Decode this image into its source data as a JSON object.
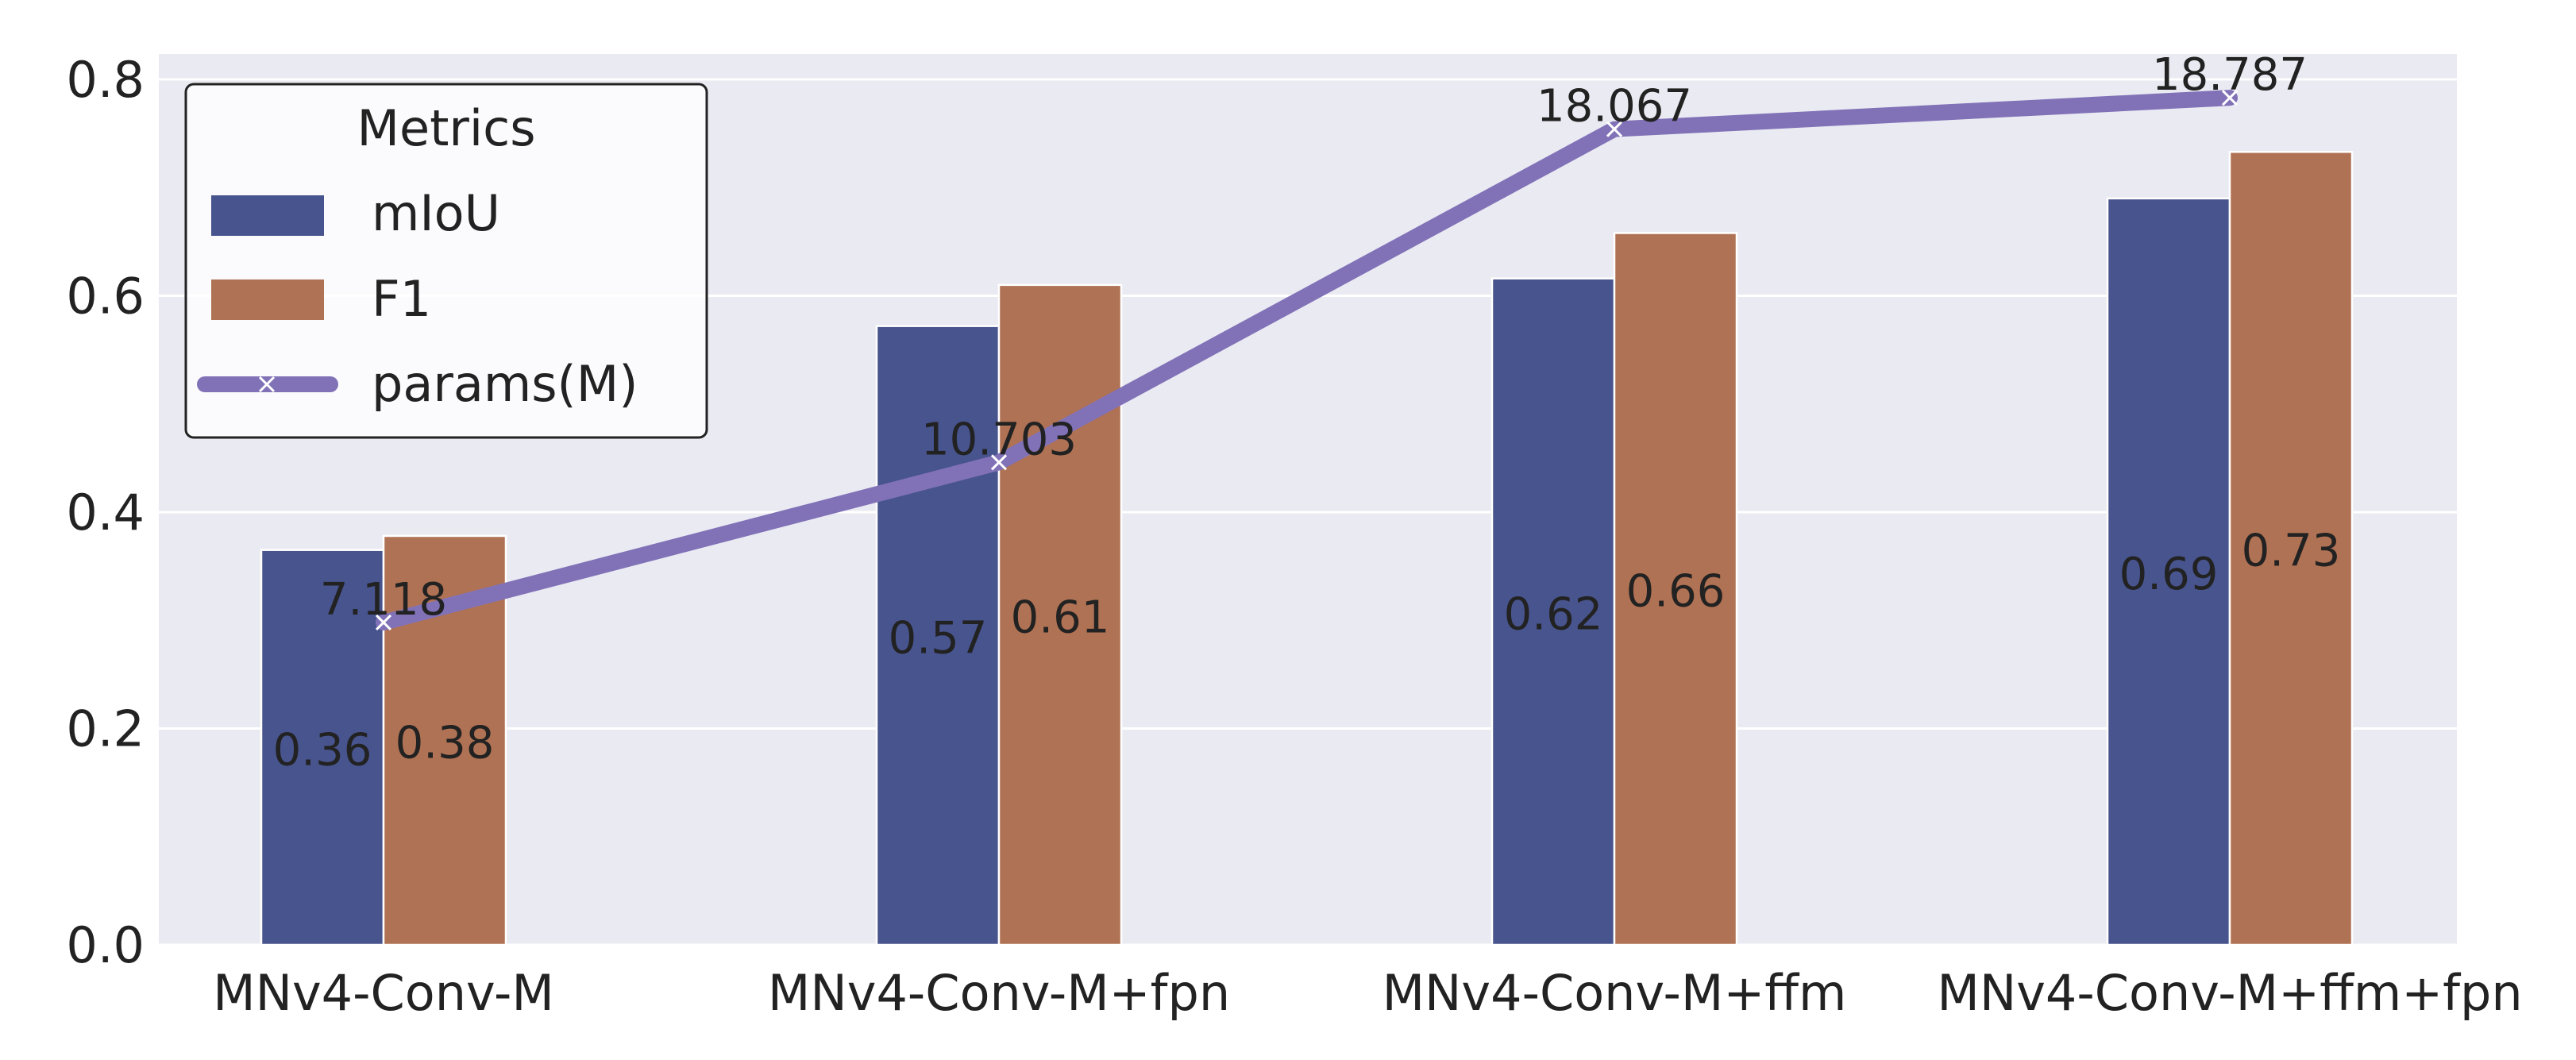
{
  "chart_data": {
    "type": "bar",
    "categories": [
      "MNv4-Conv-M",
      "MNv4-Conv-M+fpn",
      "MNv4-Conv-M+ffm",
      "MNv4-Conv-M+ffm+fpn"
    ],
    "series": [
      {
        "name": "mIoU",
        "values": [
          0.365,
          0.572,
          0.616,
          0.69
        ],
        "labels": [
          "0.36",
          "0.57",
          "0.62",
          "0.69"
        ],
        "color": "#48548d"
      },
      {
        "name": "F1",
        "values": [
          0.378,
          0.61,
          0.658,
          0.733
        ],
        "labels": [
          "0.38",
          "0.61",
          "0.66",
          "0.73"
        ],
        "color": "#b07254"
      }
    ],
    "line": {
      "name": "params(M)",
      "values": [
        0.298,
        0.446,
        0.754,
        0.783
      ],
      "labels": [
        "7.118",
        "10.703",
        "18.067",
        "18.787"
      ],
      "color": "#8172b8"
    },
    "legend": {
      "title": "Metrics",
      "position": "top-left"
    },
    "yticks": [
      "0.0",
      "0.2",
      "0.4",
      "0.6",
      "0.8"
    ],
    "ylim": [
      0,
      0.82
    ],
    "grid": true,
    "background": "#eaeaf2"
  }
}
